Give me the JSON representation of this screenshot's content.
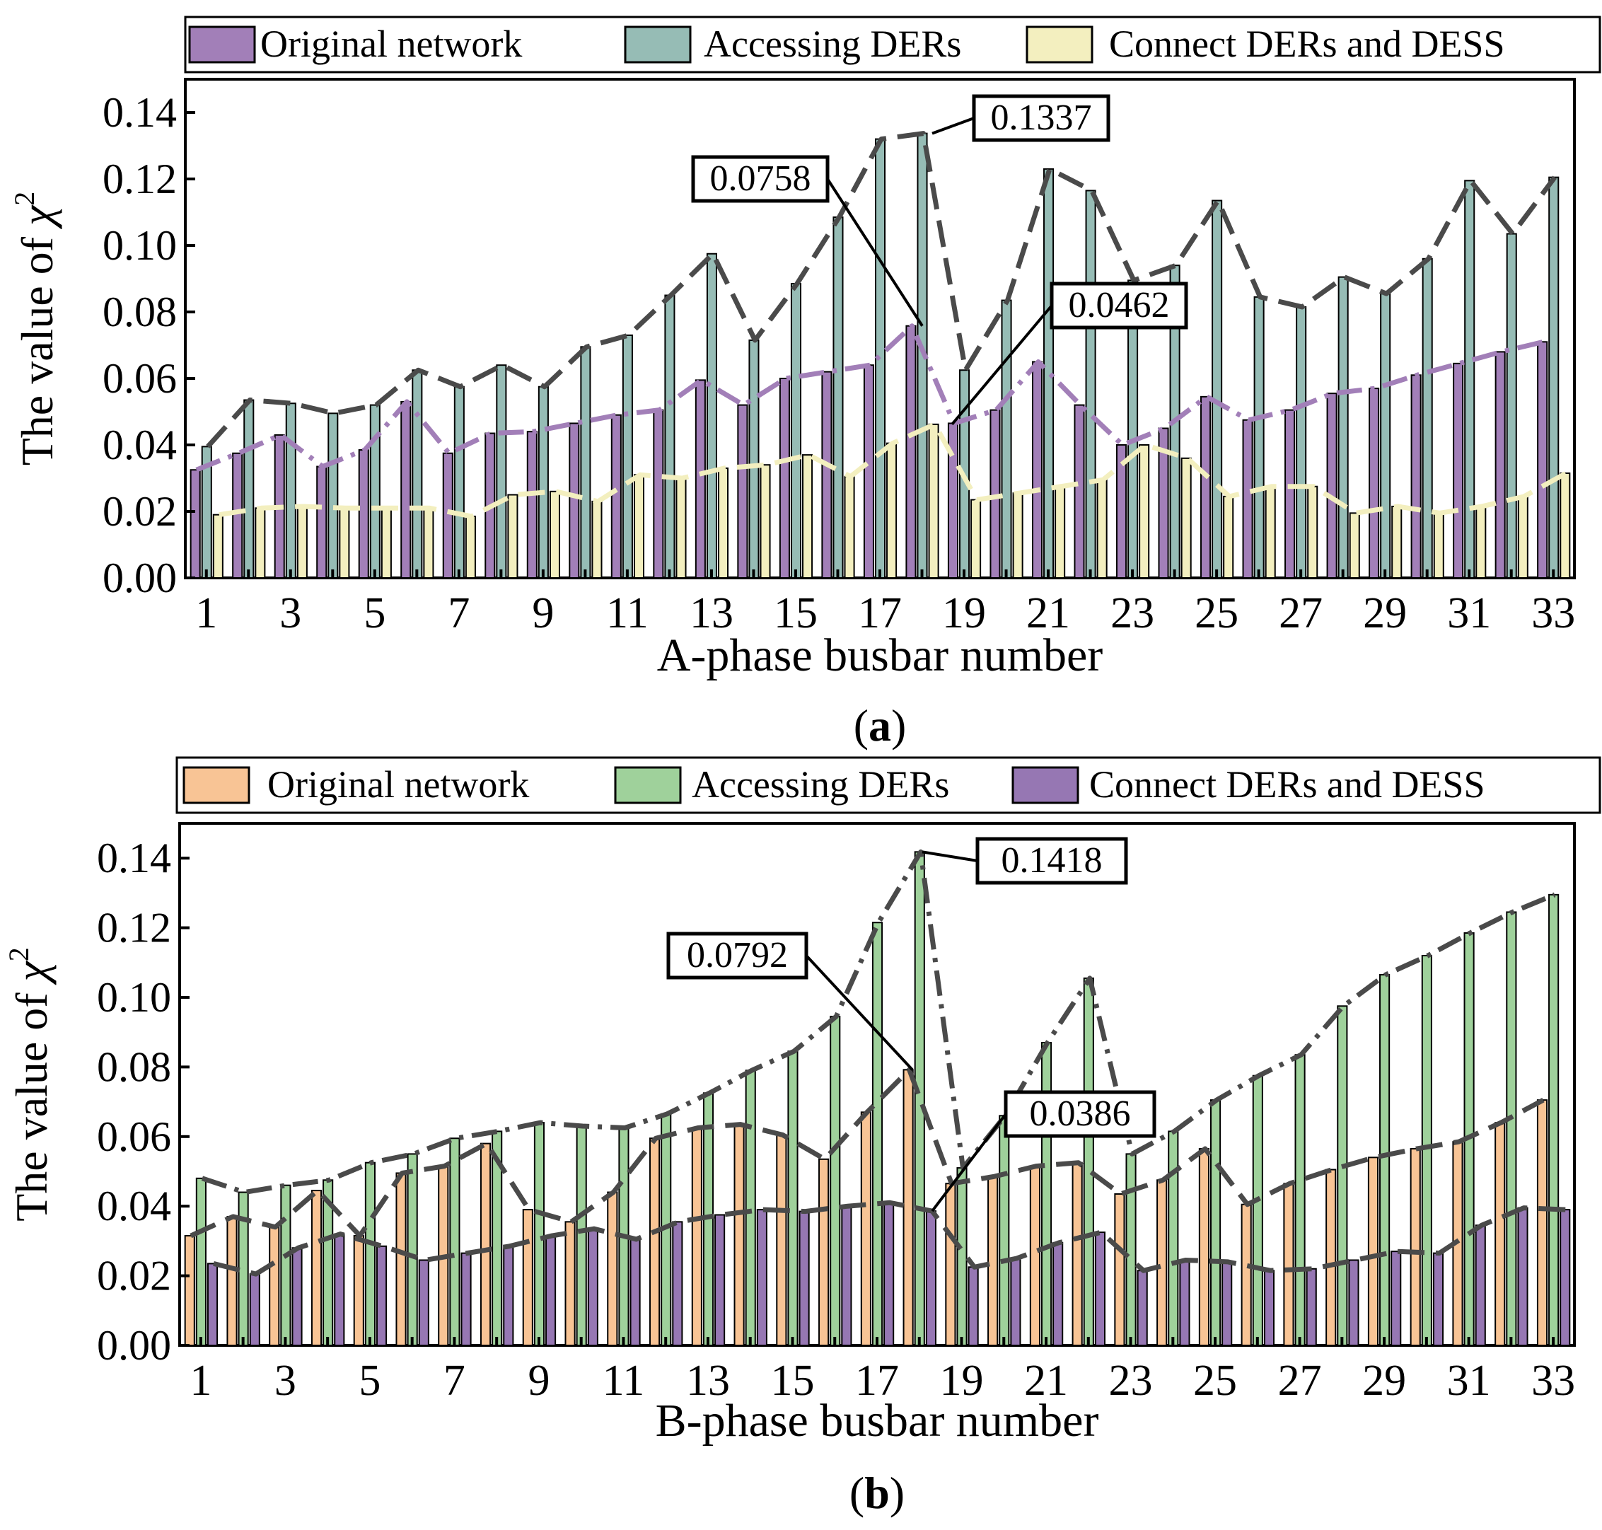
{
  "figure": {
    "background": "#ffffff"
  },
  "chart_data": [
    {
      "type": "bar",
      "panel_label_prefix": "(",
      "panel_label_letter": "a",
      "panel_label_suffix": ")",
      "xlabel": "A-phase busbar number",
      "ylabel_text": "The value of ",
      "ylabel_symbol": "χ",
      "ylabel_sup": "2",
      "ylim": [
        0,
        0.15
      ],
      "yticks": [
        "0.00",
        "0.02",
        "0.04",
        "0.06",
        "0.08",
        "0.10",
        "0.12",
        "0.14"
      ],
      "ytick_values": [
        0,
        0.02,
        0.04,
        0.06,
        0.08,
        0.1,
        0.12,
        0.14
      ],
      "categories": [
        "1",
        "2",
        "3",
        "4",
        "5",
        "6",
        "7",
        "8",
        "9",
        "10",
        "11",
        "12",
        "13",
        "14",
        "15",
        "16",
        "17",
        "18",
        "19",
        "20",
        "21",
        "22",
        "23",
        "24",
        "25",
        "26",
        "27",
        "28",
        "29",
        "30",
        "31",
        "32",
        "33"
      ],
      "xtick_labels_shown": [
        "1",
        "3",
        "5",
        "7",
        "9",
        "11",
        "13",
        "15",
        "17",
        "19",
        "21",
        "23",
        "25",
        "27",
        "29",
        "31",
        "33"
      ],
      "series": [
        {
          "name": "Original network",
          "color": "#a27fb8",
          "line_color": "#a27fb8",
          "line_dash": "dashdot",
          "values": [
            0.0325,
            0.0375,
            0.043,
            0.0335,
            0.0385,
            0.053,
            0.0375,
            0.0435,
            0.044,
            0.0465,
            0.049,
            0.0505,
            0.0595,
            0.052,
            0.06,
            0.062,
            0.064,
            0.0758,
            0.0465,
            0.0505,
            0.065,
            0.052,
            0.04,
            0.045,
            0.0545,
            0.0475,
            0.0505,
            0.0555,
            0.057,
            0.061,
            0.0645,
            0.068,
            0.071
          ]
        },
        {
          "name": "Accessing DERs",
          "color": "#96bcb5",
          "line_color": "#4a4a4a",
          "line_dash": "dashed",
          "values": [
            0.0395,
            0.0535,
            0.0525,
            0.0495,
            0.052,
            0.0625,
            0.0575,
            0.064,
            0.0575,
            0.0695,
            0.073,
            0.085,
            0.0975,
            0.0715,
            0.0885,
            0.1085,
            0.132,
            0.1337,
            0.0625,
            0.0835,
            0.123,
            0.1165,
            0.0895,
            0.094,
            0.1135,
            0.0845,
            0.0815,
            0.0905,
            0.0855,
            0.096,
            0.1195,
            0.1035,
            0.1205
          ]
        },
        {
          "name": "Connect DERs and DESS",
          "color": "#f3efbf",
          "line_color": "#f3efbf",
          "line_dash": "dashed",
          "values": [
            0.019,
            0.021,
            0.0215,
            0.021,
            0.021,
            0.021,
            0.0185,
            0.025,
            0.026,
            0.023,
            0.031,
            0.03,
            0.033,
            0.034,
            0.037,
            0.0305,
            0.0405,
            0.0462,
            0.0235,
            0.0255,
            0.0275,
            0.0295,
            0.04,
            0.036,
            0.0245,
            0.0275,
            0.0275,
            0.0195,
            0.0215,
            0.0195,
            0.0215,
            0.0245,
            0.0315
          ]
        }
      ],
      "annotations": [
        {
          "text": "0.0758",
          "series": 0,
          "index": 17
        },
        {
          "text": "0.1337",
          "series": 1,
          "index": 17
        },
        {
          "text": "0.0462",
          "series": 2,
          "index": 17
        }
      ],
      "legend_position": "top"
    },
    {
      "type": "bar",
      "panel_label_prefix": "(",
      "panel_label_letter": "b",
      "panel_label_suffix": ")",
      "xlabel": "B-phase busbar number",
      "ylabel_text": "The value of ",
      "ylabel_symbol": "χ",
      "ylabel_sup": "2",
      "ylim": [
        0,
        0.15
      ],
      "yticks": [
        "0.00",
        "0.02",
        "0.04",
        "0.06",
        "0.08",
        "0.10",
        "0.12",
        "0.14"
      ],
      "ytick_values": [
        0,
        0.02,
        0.04,
        0.06,
        0.08,
        0.1,
        0.12,
        0.14
      ],
      "categories": [
        "1",
        "2",
        "3",
        "4",
        "5",
        "6",
        "7",
        "8",
        "9",
        "10",
        "11",
        "12",
        "13",
        "14",
        "15",
        "16",
        "17",
        "18",
        "19",
        "20",
        "21",
        "22",
        "23",
        "24",
        "25",
        "26",
        "27",
        "28",
        "29",
        "30",
        "31",
        "32",
        "33"
      ],
      "xtick_labels_shown": [
        "1",
        "3",
        "5",
        "7",
        "9",
        "11",
        "13",
        "15",
        "17",
        "19",
        "21",
        "23",
        "25",
        "27",
        "29",
        "31",
        "33"
      ],
      "series": [
        {
          "name": "Original network",
          "color": "#f8c495",
          "line_color": "#4a4a4a",
          "line_dash": "dashed",
          "values": [
            0.0315,
            0.037,
            0.034,
            0.0445,
            0.0315,
            0.0495,
            0.0515,
            0.058,
            0.039,
            0.0355,
            0.044,
            0.0595,
            0.0625,
            0.0635,
            0.0605,
            0.0535,
            0.067,
            0.0792,
            0.0465,
            0.0485,
            0.0515,
            0.0525,
            0.0435,
            0.0475,
            0.0565,
            0.0405,
            0.0465,
            0.0505,
            0.054,
            0.0565,
            0.0585,
            0.064,
            0.0705
          ]
        },
        {
          "name": "Accessing DERs",
          "color": "#9fd19b",
          "line_color": "#4a4a4a",
          "line_dash": "dashdot",
          "values": [
            0.048,
            0.044,
            0.046,
            0.0475,
            0.0525,
            0.055,
            0.0595,
            0.0615,
            0.064,
            0.063,
            0.0625,
            0.0665,
            0.0725,
            0.079,
            0.0845,
            0.0945,
            0.1215,
            0.1418,
            0.051,
            0.066,
            0.087,
            0.1055,
            0.055,
            0.0615,
            0.0705,
            0.0775,
            0.0835,
            0.0975,
            0.1065,
            0.112,
            0.1185,
            0.1245,
            0.1295
          ]
        },
        {
          "name": "Connect DERs and DESS",
          "color": "#9677b3",
          "line_color": "#4a4a4a",
          "line_dash": "dashed",
          "values": [
            0.0235,
            0.0205,
            0.028,
            0.032,
            0.0285,
            0.0245,
            0.0265,
            0.0285,
            0.0315,
            0.0335,
            0.0305,
            0.0355,
            0.0375,
            0.039,
            0.0385,
            0.04,
            0.041,
            0.0386,
            0.0225,
            0.025,
            0.0295,
            0.0325,
            0.0215,
            0.0245,
            0.024,
            0.0215,
            0.022,
            0.0245,
            0.027,
            0.0265,
            0.0345,
            0.0395,
            0.039
          ]
        }
      ],
      "annotations": [
        {
          "text": "0.0792",
          "series": 0,
          "index": 17
        },
        {
          "text": "0.1418",
          "series": 1,
          "index": 17
        },
        {
          "text": "0.0386",
          "series": 2,
          "index": 17
        }
      ],
      "legend_position": "top"
    }
  ]
}
